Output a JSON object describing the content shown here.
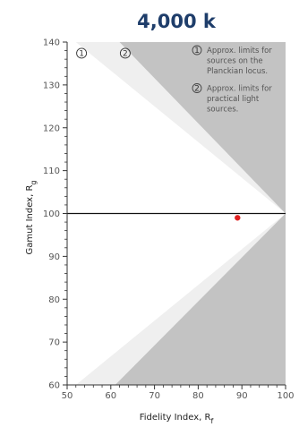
{
  "chart_data": {
    "type": "scatter",
    "title": "4,000 k",
    "xlabel": {
      "text": "Fidelity Index, R",
      "sub": "f"
    },
    "ylabel": {
      "text": "Gamut Index, R",
      "sub": "g"
    },
    "xlim": [
      50,
      100
    ],
    "ylim": [
      60,
      140
    ],
    "x_ticks": [
      50,
      60,
      70,
      80,
      90,
      100
    ],
    "y_ticks": [
      60,
      70,
      80,
      90,
      100,
      110,
      120,
      130,
      140
    ],
    "grid": false,
    "reference_line": {
      "y": 100
    },
    "regions": [
      {
        "id": "planckian",
        "marker": "1",
        "color": "#efefef",
        "boundary_top": [
          [
            100,
            100
          ],
          [
            52,
            140
          ]
        ],
        "boundary_bottom": [
          [
            100,
            100
          ],
          [
            52,
            60
          ]
        ]
      },
      {
        "id": "practical",
        "marker": "2",
        "color": "#c3c3c3",
        "boundary_top": [
          [
            100,
            100
          ],
          [
            62,
            140
          ]
        ],
        "boundary_bottom": [
          [
            100,
            100
          ],
          [
            61,
            60
          ]
        ]
      }
    ],
    "region_markers": [
      {
        "label": "1",
        "x": 53.3,
        "y": 137.4
      },
      {
        "label": "2",
        "x": 63.3,
        "y": 137.4
      }
    ],
    "legend": {
      "position": "top-right",
      "entries": [
        {
          "marker": "1",
          "lines": [
            "Approx. limits for",
            "sources on the",
            "Planckian locus."
          ]
        },
        {
          "marker": "2",
          "lines": [
            "Approx. limits for",
            "practical light",
            "sources."
          ]
        }
      ]
    },
    "points": [
      {
        "x": 89,
        "y": 99,
        "color": "#e02020"
      }
    ]
  }
}
